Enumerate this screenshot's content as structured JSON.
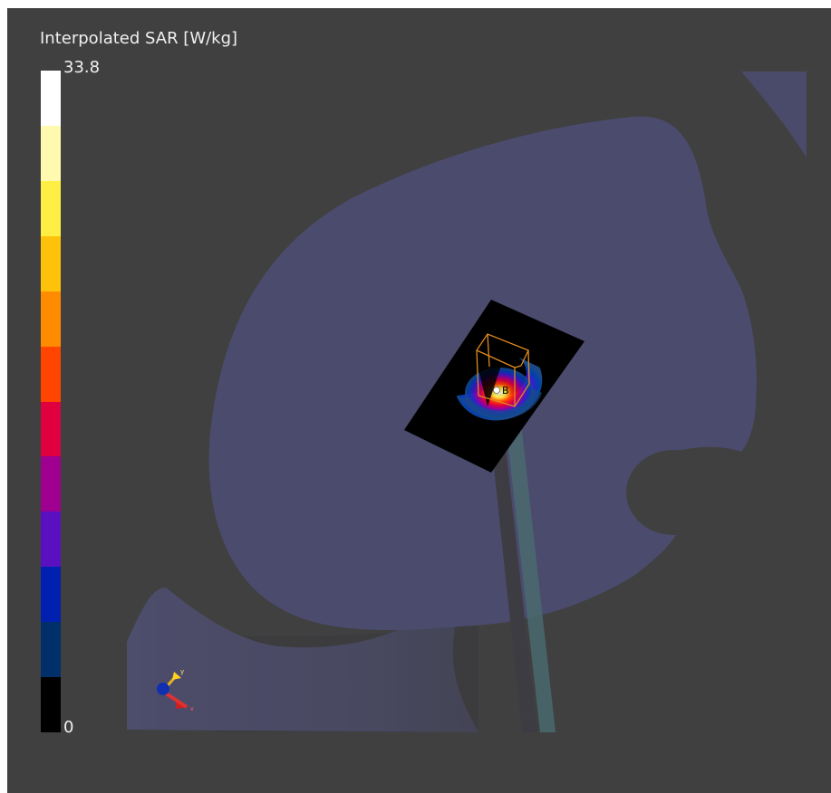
{
  "legend": {
    "title": "Interpolated SAR [W/kg]",
    "max_label": "33.8",
    "min_label": "0",
    "colors": [
      "#ffffff",
      "#fffab0",
      "#ffee44",
      "#ffc20a",
      "#ff8c00",
      "#ff4500",
      "#e00040",
      "#a00090",
      "#5a10c0",
      "#0020b0",
      "#002f6a",
      "#000000"
    ]
  },
  "scene": {
    "probe_label": "B",
    "axis_label_y": "y",
    "axis_label_x": "x"
  },
  "colors": {
    "background": "#404040",
    "phantom": "#4b4b6e",
    "pad": "#000000",
    "stand": "#4a6a6e"
  }
}
